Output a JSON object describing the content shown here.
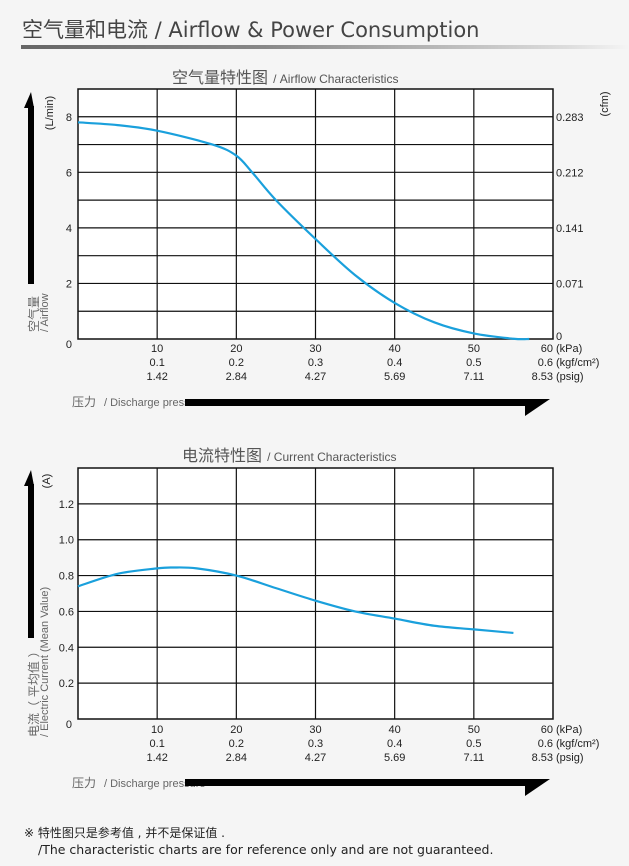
{
  "header": {
    "title": "空气量和电流 / Airflow & Power Consumption"
  },
  "colors": {
    "curve": "#1aa0dc",
    "grid": "#111111",
    "background": "#f5f5f5"
  },
  "chart_data": [
    {
      "type": "line",
      "title_cn": "空气量特性图",
      "title_en": "/ Airflow Characteristics",
      "ylabel_cn": "空气量",
      "ylabel_en": "/ Airflow",
      "yunit_left": "(L/min)",
      "yunit_right": "(cfm)",
      "xlabel_cn": "压力",
      "xlabel_en": "/ Discharge pressure",
      "xlim": [
        0,
        60
      ],
      "ylim": [
        0,
        9
      ],
      "grid": true,
      "x_ticks": {
        "kPa": [
          "0",
          "10",
          "20",
          "30",
          "40",
          "50",
          "60"
        ],
        "kgf": [
          "",
          "0.1",
          "0.2",
          "0.3",
          "0.4",
          "0.5",
          "0.6"
        ],
        "psig": [
          "",
          "1.42",
          "2.84",
          "4.27",
          "5.69",
          "7.11",
          "8.53"
        ]
      },
      "x_units": [
        "(kPa)",
        "(kgf/cm²)",
        "(psig)"
      ],
      "y_ticks": [
        {
          "value": 2,
          "label": "2"
        },
        {
          "value": 4,
          "label": "4"
        },
        {
          "value": 6,
          "label": "6"
        },
        {
          "value": 8,
          "label": "8"
        }
      ],
      "y_ticks_right": [
        {
          "value": 0,
          "label": "0"
        },
        {
          "value": 2,
          "label": "0.071"
        },
        {
          "value": 4,
          "label": "0.141"
        },
        {
          "value": 6,
          "label": "0.212"
        },
        {
          "value": 8,
          "label": "0.283"
        }
      ],
      "x": [
        0,
        5,
        10,
        17,
        20,
        22,
        25,
        30,
        35,
        40,
        45,
        50,
        55,
        57
      ],
      "y": [
        7.8,
        7.7,
        7.5,
        7.0,
        6.6,
        6.0,
        5.0,
        3.6,
        2.3,
        1.3,
        0.6,
        0.2,
        0.01,
        0
      ]
    },
    {
      "type": "line",
      "title_cn": "电流特性图",
      "title_en": "/ Current Characteristics",
      "ylabel_cn": "电流（ 平均值 ）",
      "ylabel_en": "/ Electric Current (Mean Value)",
      "yunit_left": "(A)",
      "xlabel_cn": "压力",
      "xlabel_en": "/ Discharge pressure",
      "xlim": [
        0,
        60
      ],
      "ylim": [
        0,
        1.4
      ],
      "grid": true,
      "x_ticks": {
        "kPa": [
          "0",
          "10",
          "20",
          "30",
          "40",
          "50",
          "60"
        ],
        "kgf": [
          "",
          "0.1",
          "0.2",
          "0.3",
          "0.4",
          "0.5",
          "0.6"
        ],
        "psig": [
          "",
          "1.42",
          "2.84",
          "4.27",
          "5.69",
          "7.11",
          "8.53"
        ]
      },
      "x_units": [
        "(kPa)",
        "(kgf/cm²)",
        "(psig)"
      ],
      "y_ticks": [
        {
          "value": 0.2,
          "label": "0.2"
        },
        {
          "value": 0.4,
          "label": "0.4"
        },
        {
          "value": 0.6,
          "label": "0.6"
        },
        {
          "value": 0.8,
          "label": "0.8"
        },
        {
          "value": 1.0,
          "label": "1.0"
        },
        {
          "value": 1.2,
          "label": "1.2"
        }
      ],
      "x": [
        0,
        5,
        10,
        12,
        15,
        20,
        25,
        30,
        35,
        40,
        45,
        50,
        55
      ],
      "y": [
        0.74,
        0.81,
        0.84,
        0.845,
        0.84,
        0.8,
        0.73,
        0.66,
        0.6,
        0.56,
        0.52,
        0.5,
        0.48
      ]
    }
  ],
  "footer": {
    "note_cn": "※ 特性图只是参考值 , 并不是保证值 .",
    "note_en": "/The characteristic charts are for reference only and are not guaranteed."
  }
}
